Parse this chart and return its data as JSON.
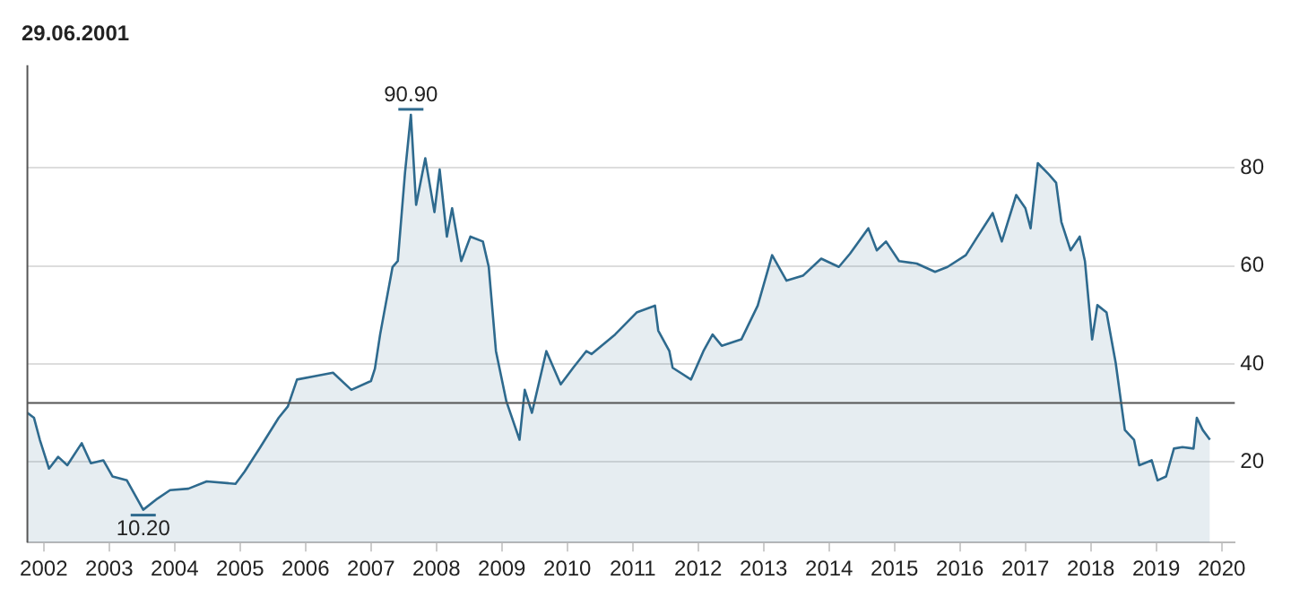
{
  "chart_data": {
    "type": "area",
    "title": "29.06.2001",
    "x": [
      2001.75,
      2001.85,
      2001.94,
      2002.08,
      2002.22,
      2002.36,
      2002.58,
      2002.72,
      2002.91,
      2003.05,
      2003.27,
      2003.52,
      2003.74,
      2003.93,
      2004.21,
      2004.49,
      2004.93,
      2005.07,
      2005.31,
      2005.59,
      2005.73,
      2005.87,
      2006.15,
      2006.42,
      2006.7,
      2007.0,
      2007.06,
      2007.14,
      2007.33,
      2007.41,
      2007.52,
      2007.61,
      2007.69,
      2007.83,
      2007.97,
      2008.05,
      2008.16,
      2008.24,
      2008.38,
      2008.52,
      2008.71,
      2008.8,
      2008.91,
      2009.07,
      2009.27,
      2009.35,
      2009.46,
      2009.68,
      2009.9,
      2010.09,
      2010.29,
      2010.37,
      2010.73,
      2011.06,
      2011.34,
      2011.39,
      2011.56,
      2011.61,
      2011.89,
      2012.08,
      2012.22,
      2012.36,
      2012.66,
      2012.91,
      2013.13,
      2013.35,
      2013.6,
      2013.88,
      2014.15,
      2014.32,
      2014.6,
      2014.73,
      2014.87,
      2015.07,
      2015.34,
      2015.62,
      2015.81,
      2016.09,
      2016.25,
      2016.5,
      2016.64,
      2016.86,
      2017.0,
      2017.08,
      2017.19,
      2017.36,
      2017.47,
      2017.55,
      2017.69,
      2017.83,
      2017.91,
      2018.02,
      2018.1,
      2018.24,
      2018.38,
      2018.52,
      2018.66,
      2018.74,
      2018.93,
      2019.02,
      2019.15,
      2019.27,
      2019.4,
      2019.57,
      2019.62,
      2019.71,
      2019.82
    ],
    "series": [
      {
        "color": "#2e6a8e",
        "values": [
          30,
          29,
          24.5,
          18.6,
          21,
          19.3,
          23.8,
          19.7,
          20.3,
          17,
          16.2,
          10.2,
          12.5,
          14.2,
          14.5,
          16,
          15.5,
          18,
          23,
          29,
          31.3,
          36.8,
          37.5,
          38.2,
          34.7,
          36.5,
          39,
          46,
          59.8,
          61,
          79,
          90.9,
          72.5,
          82,
          71,
          79.7,
          66,
          71.8,
          61,
          66,
          65,
          59.8,
          42.6,
          32.3,
          24.5,
          34.7,
          30,
          42.6,
          35.8,
          39.2,
          42.6,
          42,
          46,
          50.5,
          51.9,
          46.8,
          42.6,
          39.2,
          36.8,
          42.6,
          46,
          43.7,
          45,
          51.9,
          62.2,
          57,
          58,
          61.5,
          59.8,
          62.5,
          67.7,
          63.2,
          65,
          61,
          60.5,
          58.8,
          59.8,
          62.2,
          65.6,
          70.8,
          65,
          74.5,
          71.8,
          67.7,
          81,
          78.7,
          77,
          69,
          63.2,
          66,
          61,
          45,
          52,
          50.5,
          40.2,
          26.5,
          24.5,
          19.3,
          20.3,
          16.2,
          17,
          22.7,
          23,
          22.7,
          29,
          26.5,
          24.5
        ]
      }
    ],
    "xlim": [
      2001.75,
      2020.2
    ],
    "xticks": [
      2002,
      2003,
      2004,
      2005,
      2006,
      2007,
      2008,
      2009,
      2010,
      2011,
      2012,
      2013,
      2014,
      2015,
      2016,
      2017,
      2018,
      2019,
      2020
    ],
    "ylim": [
      3.5,
      101
    ],
    "yticks": [
      20,
      40,
      60,
      80
    ],
    "grid": "y",
    "legend": false,
    "ref_lines": [
      {
        "axis": "x",
        "value": 2001.75,
        "color": "#555555"
      },
      {
        "axis": "y",
        "value": 32,
        "color": "#555555"
      }
    ],
    "annotations": [
      {
        "text": "90.90",
        "x": 2007.61,
        "y": 90.9
      },
      {
        "text": "10.20",
        "x": 2003.52,
        "y": 10.2
      }
    ]
  }
}
